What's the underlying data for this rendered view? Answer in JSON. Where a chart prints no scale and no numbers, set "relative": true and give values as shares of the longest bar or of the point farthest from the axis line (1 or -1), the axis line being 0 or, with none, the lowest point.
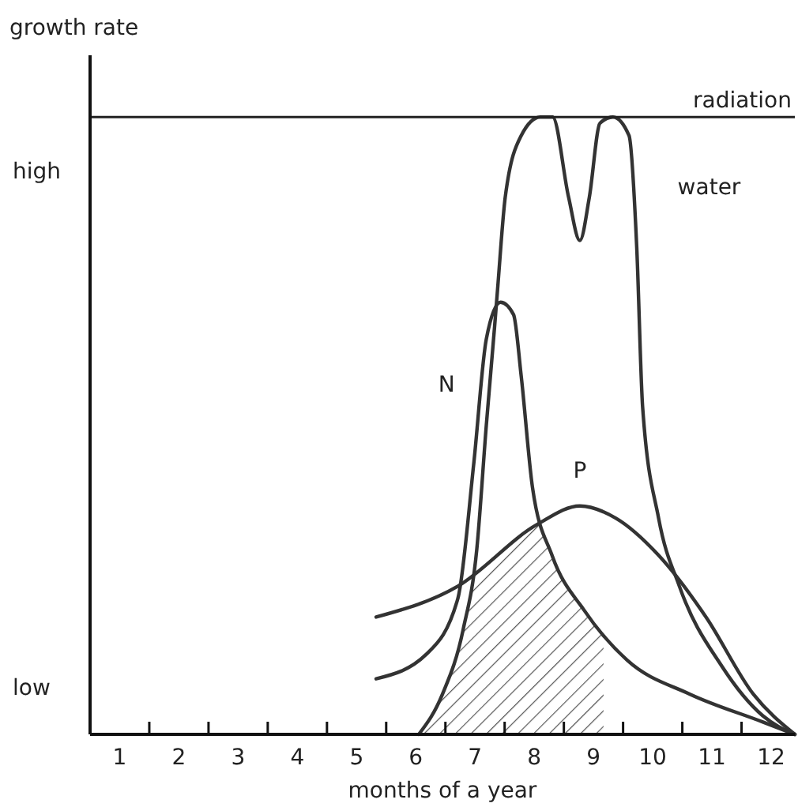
{
  "chart_data": {
    "type": "line",
    "ylabel": "growth rate",
    "xlabel": "months of a year",
    "xlim": [
      0.5,
      12.4
    ],
    "relative": true,
    "xticks": [
      1,
      2,
      3,
      4,
      5,
      6,
      7,
      8,
      9,
      10,
      11,
      12,
      {
        "value": 1.5,
        "label": null
      },
      {
        "value": 2.5,
        "label": null
      },
      {
        "value": 3.5,
        "label": null
      },
      {
        "value": 4.5,
        "label": null
      },
      {
        "value": 5.5,
        "label": null
      },
      {
        "value": 6.5,
        "label": null
      },
      {
        "value": 7.5,
        "label": null
      },
      {
        "value": 8.5,
        "label": null
      },
      {
        "value": 9.5,
        "label": null
      },
      {
        "value": 10.5,
        "label": null
      },
      {
        "value": 11.5,
        "label": null
      }
    ],
    "annotations": [
      "high",
      "low"
    ],
    "legend": false,
    "marker": "none",
    "line_style": "solid",
    "ref_lines": [
      {
        "axis": "y",
        "value": 1.0,
        "label": "radiation",
        "color": "#222222"
      }
    ],
    "bands": [
      {
        "axis": "x",
        "from": 6.05,
        "to": 9.17,
        "color": "#555555"
      }
    ],
    "series": [
      {
        "name": "water",
        "color": "#333333",
        "x": [
          6.05,
          6.45,
          6.8,
          7.03,
          7.19,
          7.33,
          7.38,
          7.51,
          7.78,
          8.1,
          8.31,
          8.58,
          8.77,
          8.93,
          9.11,
          9.33,
          9.6,
          9.73,
          9.83,
          10.1,
          10.45,
          11.17,
          11.86,
          12.4
        ],
        "values": [
          0,
          0.065,
          0.17,
          0.3,
          0.5,
          0.66,
          0.72,
          0.87,
          0.97,
          1,
          1,
          0.87,
          0.8,
          0.87,
          0.99,
          1,
          0.97,
          0.79,
          0.53,
          0.35,
          0.24,
          0.11,
          0.03,
          0
        ]
      },
      {
        "name": "N",
        "color": "#333333",
        "x": [
          5.33,
          6.18,
          6.71,
          6.98,
          7.19,
          7.43,
          7.65,
          7.78,
          7.97,
          8.3,
          8.85,
          9.57,
          10.63,
          11.86,
          12.4
        ],
        "values": [
          0.09,
          0.13,
          0.22,
          0.44,
          0.64,
          0.7,
          0.68,
          0.58,
          0.4,
          0.29,
          0.2,
          0.12,
          0.065,
          0.02,
          0
        ]
      },
      {
        "name": "P",
        "color": "#333333",
        "x": [
          5.33,
          6.71,
          8.05,
          8.77,
          9.38,
          10.1,
          10.9,
          11.7,
          12.4
        ],
        "values": [
          0.19,
          0.24,
          0.34,
          0.37,
          0.35,
          0.29,
          0.19,
          0.065,
          0
        ]
      }
    ]
  }
}
